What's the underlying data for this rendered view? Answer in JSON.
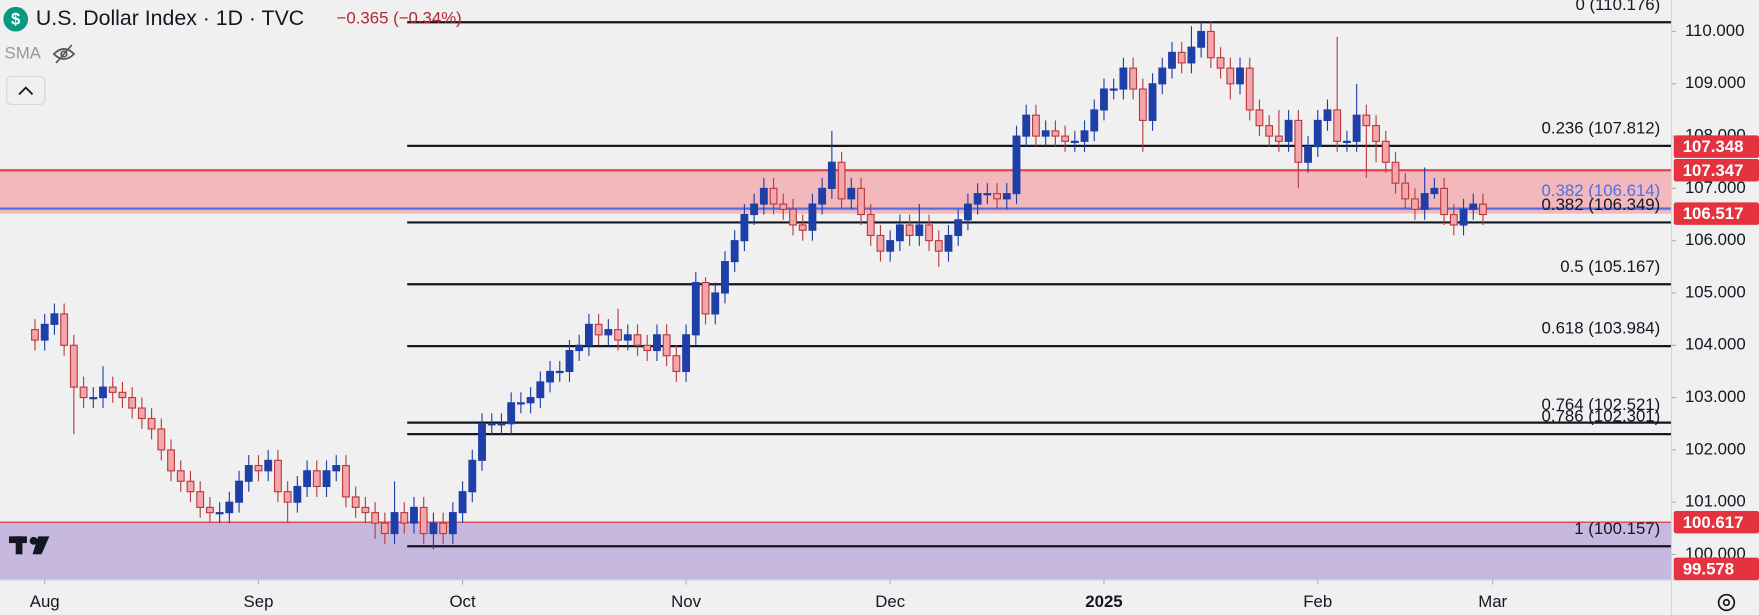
{
  "chart_data": {
    "type": "candlestick",
    "title": "U.S. Dollar Index · 1D · TVC",
    "change_label": "−0.365 (−0.34%)",
    "indicator": "SMA",
    "up_color": "#1e3ea8",
    "down_color": "#f4a6aa",
    "down_border": "#b83a3e",
    "xlim": [
      -3.6,
      168.4
    ],
    "xticks": [
      {
        "value": 1,
        "label": "Aug"
      },
      {
        "value": 23,
        "label": "Sep"
      },
      {
        "value": 44,
        "label": "Oct"
      },
      {
        "value": 67,
        "label": "Nov"
      },
      {
        "value": 88,
        "label": "Dec"
      },
      {
        "value": 110,
        "label": "2025"
      },
      {
        "value": 132,
        "label": "Feb"
      },
      {
        "value": 150,
        "label": "Mar"
      }
    ],
    "ylim": [
      99.51,
      110.6
    ],
    "yticks": [
      {
        "value": 100,
        "label": "100.000"
      },
      {
        "value": 101,
        "label": "101.000"
      },
      {
        "value": 102,
        "label": "102.000"
      },
      {
        "value": 103,
        "label": "103.000"
      },
      {
        "value": 104,
        "label": "104.000"
      },
      {
        "value": 105,
        "label": "105.000"
      },
      {
        "value": 106,
        "label": "106.000"
      },
      {
        "value": 107,
        "label": "107.000"
      },
      {
        "value": 108,
        "label": "108.000"
      },
      {
        "value": 109,
        "label": "109.000"
      },
      {
        "value": 110,
        "label": "110.000"
      }
    ],
    "open": [
      104.3,
      104.1,
      104.4,
      104.6,
      104.0,
      103.2,
      103.0,
      103.0,
      103.2,
      103.1,
      103.0,
      102.8,
      102.6,
      102.4,
      102.0,
      101.6,
      101.4,
      101.2,
      100.9,
      100.8,
      100.8,
      101.0,
      101.4,
      101.7,
      101.6,
      101.8,
      101.2,
      101.0,
      101.3,
      101.6,
      101.3,
      101.6,
      101.7,
      101.1,
      100.9,
      100.8,
      100.6,
      100.4,
      100.8,
      100.6,
      100.9,
      100.4,
      100.6,
      100.4,
      100.8,
      101.2,
      101.8,
      102.5,
      102.5,
      102.5,
      102.9,
      102.9,
      103.0,
      103.3,
      103.5,
      103.5,
      103.9,
      104.0,
      104.4,
      104.2,
      104.3,
      104.1,
      104.2,
      104.0,
      103.9,
      104.2,
      103.8,
      103.5,
      104.2,
      105.2,
      104.6,
      105.0,
      105.6,
      106.0,
      106.5,
      106.7,
      107.0,
      106.7,
      106.6,
      106.3,
      106.2,
      106.7,
      107.0,
      107.5,
      106.8,
      107.0,
      106.5,
      106.1,
      105.8,
      106.0,
      106.3,
      106.1,
      106.3,
      106.0,
      105.8,
      106.1,
      106.4,
      106.7,
      106.9,
      106.9,
      106.8,
      106.9,
      108.0,
      108.4,
      108.0,
      108.1,
      108.0,
      107.9,
      107.9,
      108.1,
      108.5,
      108.9,
      108.9,
      109.3,
      108.9,
      108.3,
      109.0,
      109.3,
      109.6,
      109.4,
      109.7,
      110.0,
      109.5,
      109.3,
      109.0,
      109.3,
      108.5,
      108.2,
      108.0,
      107.9,
      108.3,
      107.5,
      107.8,
      108.3,
      108.5,
      107.9,
      107.9,
      108.4,
      108.2,
      107.9,
      107.5,
      107.1,
      106.8,
      106.6,
      106.9,
      107.0,
      106.5,
      106.3,
      106.6,
      106.7
    ],
    "high": [
      104.5,
      104.6,
      104.8,
      104.8,
      104.2,
      103.4,
      103.2,
      103.6,
      103.4,
      103.3,
      103.2,
      103.0,
      102.8,
      102.6,
      102.2,
      101.8,
      101.6,
      101.4,
      101.1,
      101.0,
      101.2,
      101.6,
      101.9,
      101.9,
      102.0,
      102.0,
      101.4,
      101.5,
      101.8,
      101.8,
      101.8,
      101.9,
      101.9,
      101.3,
      101.1,
      101.0,
      100.8,
      101.4,
      101.0,
      101.1,
      101.1,
      100.8,
      100.8,
      101.0,
      101.4,
      102.0,
      102.7,
      102.7,
      102.7,
      103.1,
      103.1,
      103.2,
      103.5,
      103.7,
      103.7,
      104.1,
      104.2,
      104.6,
      104.6,
      104.5,
      104.7,
      104.4,
      104.4,
      104.2,
      104.4,
      104.4,
      104.0,
      104.4,
      105.4,
      105.3,
      105.2,
      105.8,
      106.2,
      106.7,
      106.9,
      107.2,
      107.2,
      106.9,
      106.8,
      106.5,
      106.9,
      107.2,
      108.1,
      107.7,
      107.2,
      107.2,
      106.7,
      106.3,
      106.2,
      106.5,
      106.5,
      106.7,
      106.5,
      106.2,
      106.3,
      106.6,
      106.9,
      107.1,
      107.1,
      107.1,
      107.1,
      108.2,
      108.6,
      108.6,
      108.3,
      108.3,
      108.2,
      108.1,
      108.3,
      108.7,
      109.1,
      109.1,
      109.5,
      109.5,
      109.1,
      109.2,
      109.5,
      109.8,
      109.8,
      110.1,
      110.18,
      110.2,
      109.7,
      109.5,
      109.5,
      109.5,
      108.7,
      108.4,
      108.5,
      108.5,
      108.5,
      108.0,
      108.5,
      108.7,
      109.9,
      108.1,
      109.0,
      108.6,
      108.4,
      108.1,
      107.7,
      107.3,
      107.0,
      107.4,
      107.2,
      107.2,
      106.7,
      106.8,
      106.9,
      106.9
    ],
    "low": [
      103.9,
      103.9,
      104.2,
      103.8,
      102.3,
      102.8,
      102.8,
      102.8,
      102.9,
      102.8,
      102.6,
      102.4,
      102.2,
      101.8,
      101.4,
      101.2,
      101.0,
      100.7,
      100.6,
      100.6,
      100.6,
      100.8,
      101.2,
      101.4,
      101.4,
      101.0,
      100.6,
      100.8,
      101.1,
      101.1,
      101.1,
      101.4,
      100.9,
      100.7,
      100.6,
      100.3,
      100.2,
      100.2,
      100.4,
      100.4,
      100.2,
      100.1,
      100.2,
      100.2,
      100.6,
      101.0,
      101.6,
      102.3,
      102.3,
      102.3,
      102.7,
      102.7,
      102.8,
      103.1,
      103.3,
      103.3,
      103.7,
      103.8,
      104.0,
      104.0,
      103.9,
      103.9,
      103.8,
      103.7,
      103.7,
      103.6,
      103.3,
      103.3,
      104.0,
      104.4,
      104.4,
      104.8,
      105.4,
      105.8,
      106.3,
      106.5,
      106.5,
      106.4,
      106.1,
      106.0,
      106.0,
      106.5,
      106.8,
      106.6,
      106.6,
      106.3,
      105.9,
      105.6,
      105.6,
      105.8,
      105.9,
      105.9,
      105.8,
      105.5,
      105.6,
      105.9,
      106.2,
      106.5,
      106.7,
      106.6,
      106.6,
      106.7,
      107.8,
      107.8,
      107.8,
      107.8,
      107.7,
      107.7,
      107.7,
      107.9,
      108.3,
      108.7,
      108.7,
      108.7,
      107.7,
      108.1,
      108.8,
      109.1,
      109.2,
      109.2,
      109.5,
      109.3,
      109.1,
      108.7,
      108.8,
      108.3,
      108.0,
      107.8,
      107.7,
      107.7,
      107.0,
      107.3,
      107.6,
      108.1,
      107.7,
      107.7,
      107.7,
      107.2,
      107.5,
      107.3,
      106.9,
      106.6,
      106.4,
      106.4,
      106.8,
      106.3,
      106.1,
      106.1,
      106.4,
      106.3
    ],
    "close": [
      104.1,
      104.4,
      104.6,
      104.0,
      103.2,
      103.0,
      103.0,
      103.2,
      103.1,
      103.0,
      102.8,
      102.6,
      102.4,
      102.0,
      101.6,
      101.4,
      101.2,
      100.9,
      100.8,
      100.8,
      101.0,
      101.4,
      101.7,
      101.6,
      101.8,
      101.2,
      101.0,
      101.3,
      101.6,
      101.3,
      101.6,
      101.7,
      101.1,
      100.9,
      100.8,
      100.6,
      100.4,
      100.8,
      100.6,
      100.9,
      100.4,
      100.6,
      100.4,
      100.8,
      101.2,
      101.8,
      102.5,
      102.5,
      102.5,
      102.9,
      102.9,
      103.0,
      103.3,
      103.5,
      103.5,
      103.9,
      104.0,
      104.4,
      104.2,
      104.3,
      104.1,
      104.2,
      104.0,
      103.9,
      104.2,
      103.8,
      103.5,
      104.2,
      105.2,
      104.6,
      105.0,
      105.6,
      106.0,
      106.5,
      106.7,
      107.0,
      106.7,
      106.6,
      106.3,
      106.2,
      106.7,
      107.0,
      107.5,
      106.8,
      107.0,
      106.5,
      106.1,
      105.8,
      106.0,
      106.3,
      106.1,
      106.3,
      106.0,
      105.8,
      106.1,
      106.4,
      106.7,
      106.9,
      106.9,
      106.8,
      106.9,
      108.0,
      108.4,
      108.0,
      108.1,
      108.0,
      107.9,
      107.9,
      108.1,
      108.5,
      108.9,
      108.9,
      109.3,
      108.9,
      108.3,
      109.0,
      109.3,
      109.6,
      109.4,
      109.7,
      110.0,
      109.5,
      109.3,
      109.0,
      109.3,
      108.5,
      108.2,
      108.0,
      107.9,
      108.3,
      107.5,
      107.8,
      108.3,
      108.5,
      107.9,
      107.9,
      108.4,
      108.2,
      107.9,
      107.5,
      107.1,
      106.8,
      106.6,
      106.9,
      107.0,
      106.5,
      106.3,
      106.6,
      106.7,
      106.5
    ],
    "zones": [
      {
        "from": 106.517,
        "to": 107.347,
        "color": "#f2b8bc",
        "line_color": "#e8414f"
      }
    ],
    "lower_zone": {
      "top": 100.617,
      "color": "#c6b8de",
      "line_color": "#e8414f"
    },
    "fib_color": "#131722",
    "fib_start": 38.3,
    "fib_levels": [
      {
        "value": 110.176,
        "label": "0 (110.176)"
      },
      {
        "value": 107.812,
        "label": "0.236 (107.812)"
      },
      {
        "value": 106.349,
        "label": "0.382 (106.349)"
      },
      {
        "value": 105.167,
        "label": "0.5 (105.167)"
      },
      {
        "value": 103.984,
        "label": "0.618 (103.984)"
      },
      {
        "value": 102.521,
        "label": "0.764 (102.521)"
      },
      {
        "value": 102.301,
        "label": "0.786 (102.301)"
      },
      {
        "value": 100.157,
        "label": "1 (100.157)"
      }
    ],
    "blue_level": {
      "value": 106.614,
      "label": "0.382 (106.614)",
      "color": "#4c6fe8"
    },
    "price_labels": [
      {
        "value": 107.348,
        "label": "107.348"
      },
      {
        "value": 107.347,
        "label": "107.347"
      },
      {
        "value": 106.517,
        "label": "106.517"
      },
      {
        "value": 100.617,
        "label": "100.617"
      },
      {
        "value": 99.578,
        "label": "99.578"
      }
    ],
    "price_label_color": "#e5323f"
  }
}
